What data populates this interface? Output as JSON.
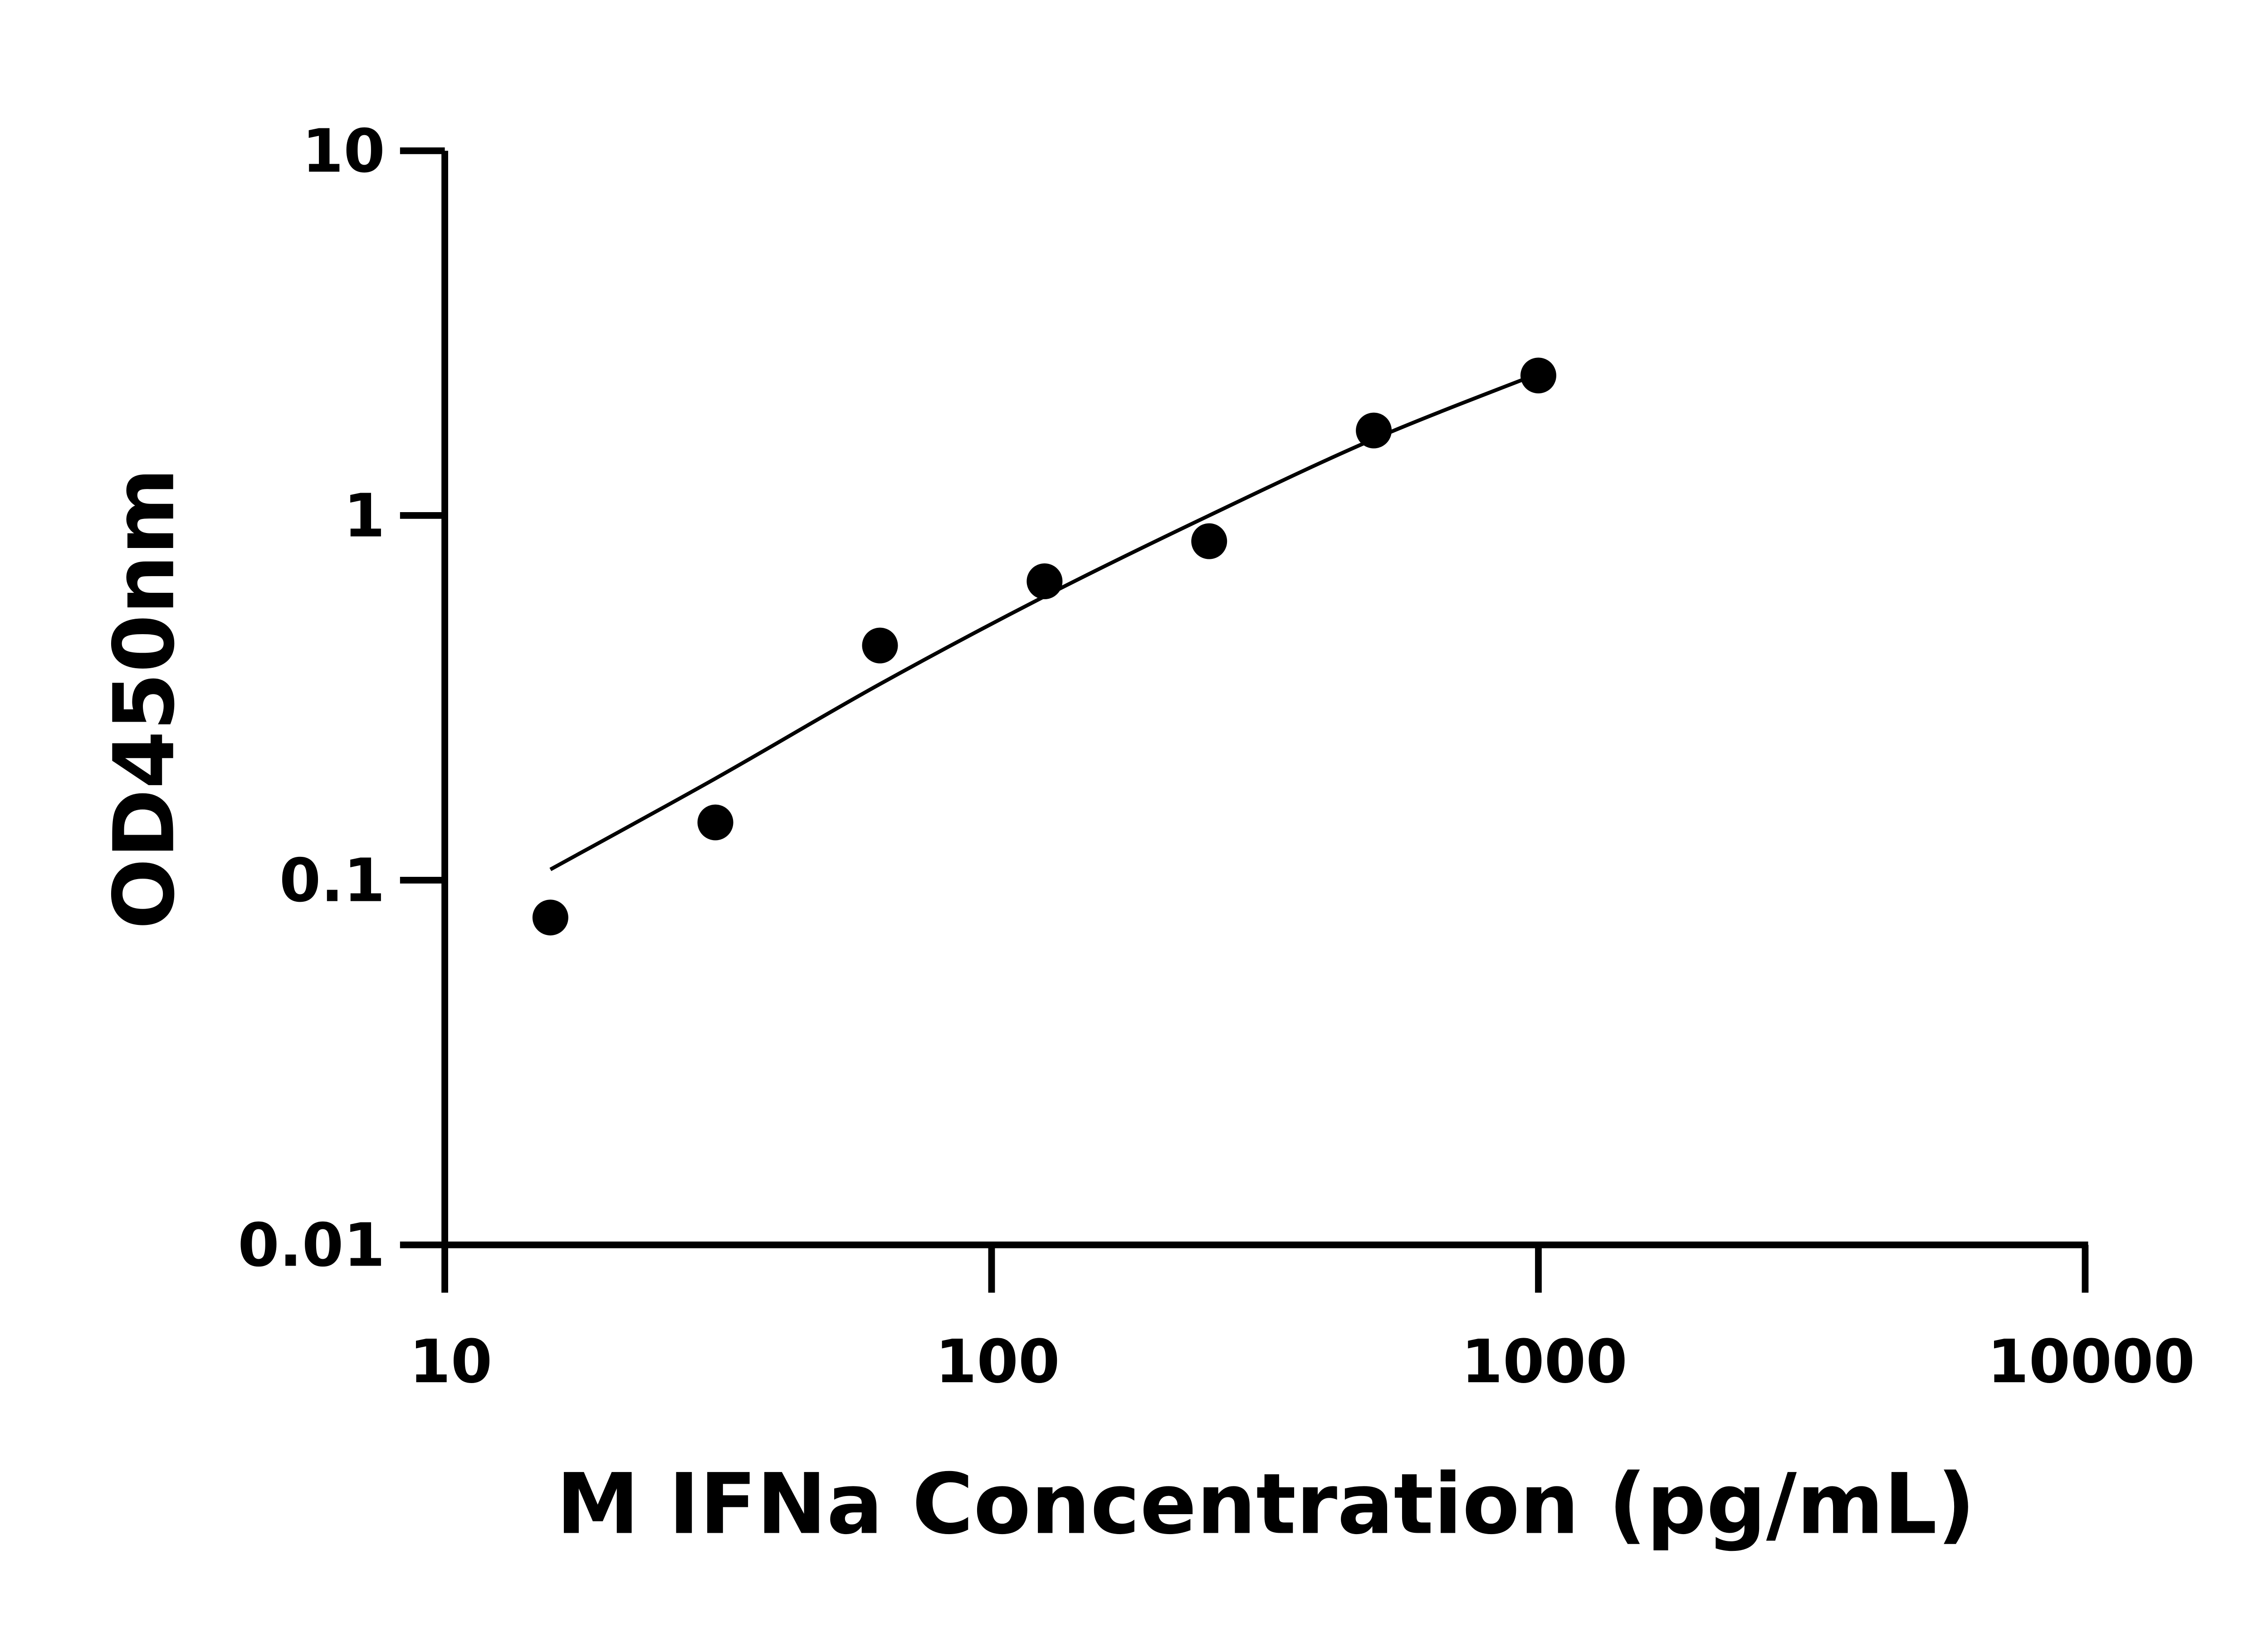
{
  "chart_data": {
    "type": "scatter",
    "title": "",
    "xlabel": "M IFNa Concentration (pg/mL)",
    "ylabel": "OD450nm",
    "x_scale": "log",
    "y_scale": "log",
    "xlim": [
      10,
      10000
    ],
    "ylim": [
      0.01,
      10
    ],
    "x_ticks": [
      "10",
      "100",
      "1000",
      "10000"
    ],
    "y_ticks": [
      "0.01",
      "0.1",
      "1",
      "10"
    ],
    "grid": false,
    "legend": "none",
    "marker_color": "#000000",
    "series": [
      {
        "points": [
          {
            "x": 15.6,
            "y": 0.079
          },
          {
            "x": 31.25,
            "y": 0.144
          },
          {
            "x": 62.5,
            "y": 0.44
          },
          {
            "x": 125,
            "y": 0.66
          },
          {
            "x": 250,
            "y": 0.85
          },
          {
            "x": 500,
            "y": 1.71
          },
          {
            "x": 1000,
            "y": 2.42
          }
        ]
      }
    ],
    "fit_curve": [
      {
        "x": 15.6,
        "y": 0.107
      },
      {
        "x": 31.25,
        "y": 0.19
      },
      {
        "x": 62.5,
        "y": 0.345
      },
      {
        "x": 125,
        "y": 0.6
      },
      {
        "x": 250,
        "y": 1.0
      },
      {
        "x": 500,
        "y": 1.62
      },
      {
        "x": 1000,
        "y": 2.45
      }
    ]
  }
}
